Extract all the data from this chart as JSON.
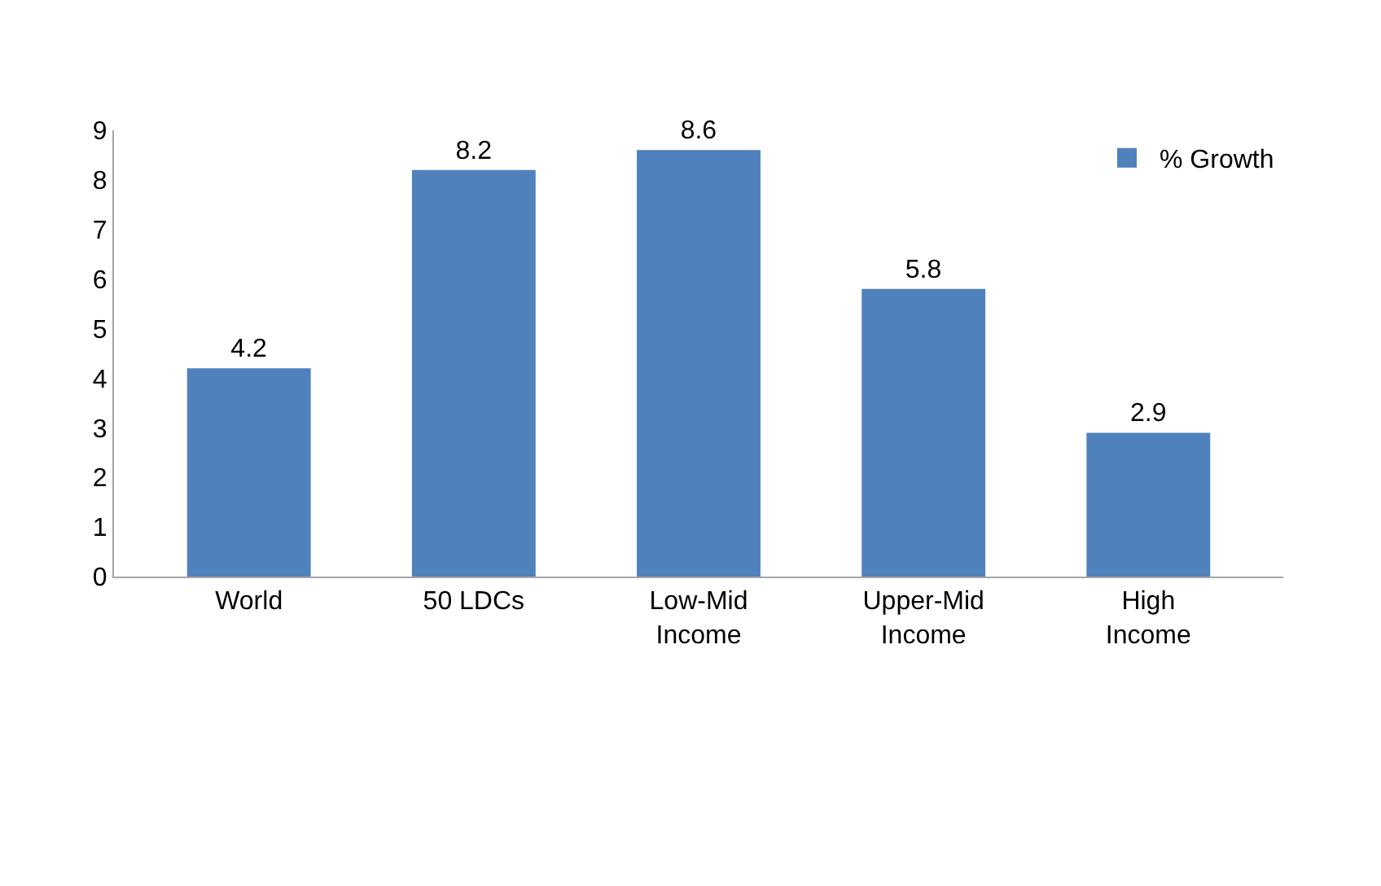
{
  "chart_data": {
    "type": "bar",
    "categories": [
      "World",
      "50 LDCs",
      "Low-Mid Income",
      "Upper-Mid Income",
      "High Income"
    ],
    "series": [
      {
        "name": "% Growth",
        "color": "#4f81bd",
        "values": [
          4.2,
          8.2,
          8.6,
          5.8,
          2.9
        ]
      }
    ],
    "ylim": [
      0,
      9
    ],
    "yticks": [
      0,
      1,
      2,
      3,
      4,
      5,
      6,
      7,
      8,
      9
    ],
    "legend": "top right",
    "data_labels": true
  }
}
